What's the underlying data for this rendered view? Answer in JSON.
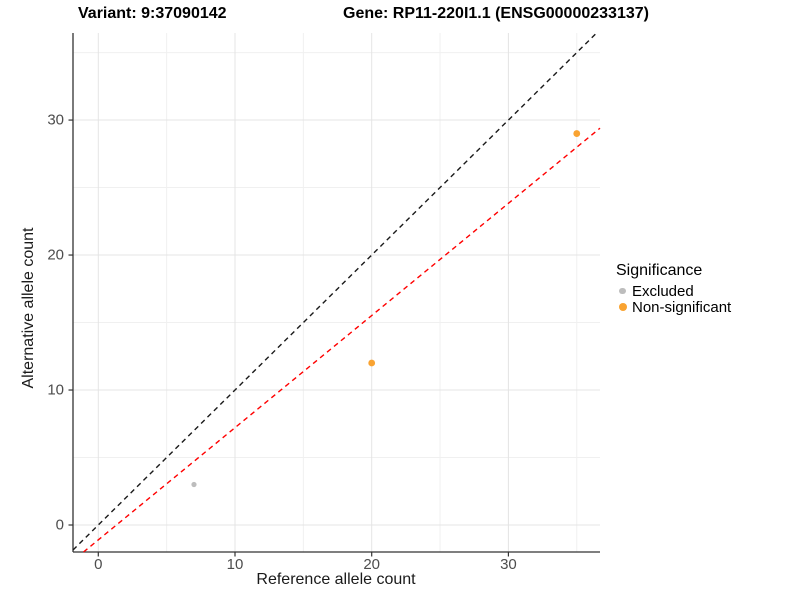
{
  "header": {
    "variant_title": "Variant: 9:37090142",
    "gene_title": "Gene: RP11-220I1.1 (ENSG00000233137)"
  },
  "chart_data": {
    "type": "scatter",
    "xlabel": "Reference allele count",
    "ylabel": "Alternative allele count",
    "xlim": [
      -1.85,
      36.7
    ],
    "ylim": [
      -2.0,
      36.45
    ],
    "x_ticks": [
      0,
      10,
      20,
      30
    ],
    "y_ticks": [
      0,
      10,
      20,
      30
    ],
    "x_minor_ticks": [
      5,
      15,
      25,
      35
    ],
    "y_minor_ticks": [
      5,
      15,
      25,
      35
    ],
    "grid": true,
    "series": [
      {
        "name": "Excluded",
        "color": "#BDBDBD",
        "point_radius": 2.6,
        "points": [
          [
            7,
            3
          ]
        ]
      },
      {
        "name": "Non-significant",
        "color": "#F9A331",
        "point_radius": 3.4,
        "points": [
          [
            20,
            12
          ],
          [
            35,
            29
          ]
        ]
      }
    ],
    "lines": [
      {
        "name": "identity-line",
        "color": "#1A1A1A",
        "dashed": true,
        "points": [
          [
            -1.85,
            -1.85
          ],
          [
            36.45,
            36.45
          ]
        ]
      },
      {
        "name": "fit-line",
        "color": "#FF0000",
        "dashed": true,
        "points": [
          [
            -1.08,
            -2.0
          ],
          [
            36.7,
            29.4
          ]
        ]
      }
    ],
    "legend": {
      "title": "Significance",
      "position": "right",
      "items": [
        {
          "label": "Excluded",
          "color": "#BDBDBD",
          "radius": 3.2
        },
        {
          "label": "Non-significant",
          "color": "#F9A331",
          "radius": 4.0
        }
      ]
    },
    "colors": {
      "grid_major": "#E4E4E4",
      "grid_minor": "#F0F0F0",
      "axis": "#333333",
      "tick_label": "#4D4D4D"
    }
  }
}
